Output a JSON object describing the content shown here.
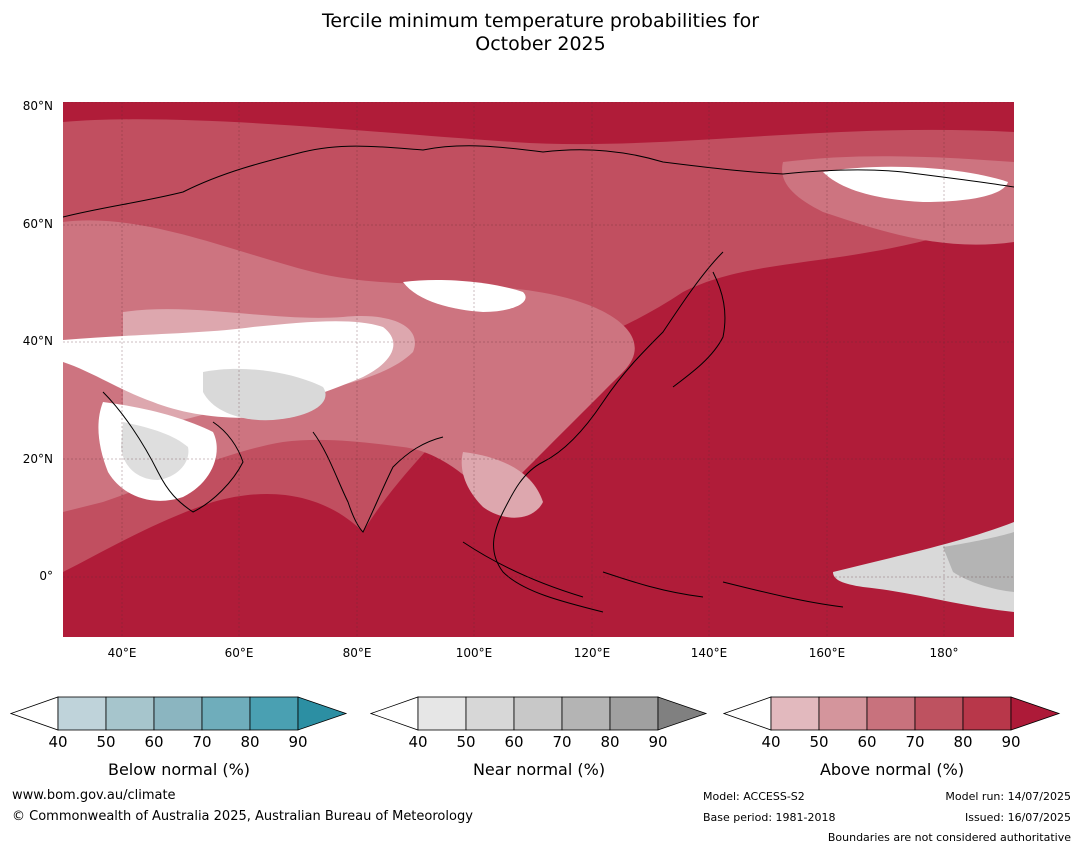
{
  "title_line1": "Tercile minimum temperature probabilities for",
  "title_line2": "October 2025",
  "axes": {
    "lat_labels": [
      "80°N",
      "60°N",
      "40°N",
      "20°N",
      "0°"
    ],
    "lon_labels": [
      "40°E",
      "60°E",
      "80°E",
      "100°E",
      "120°E",
      "140°E",
      "160°E",
      "180°"
    ]
  },
  "colorbars": [
    {
      "name": "Below normal (%)",
      "ticks": [
        "40",
        "50",
        "60",
        "70",
        "80",
        "90"
      ],
      "colors": [
        "#ffffff",
        "#bfd3da",
        "#a6c5cc",
        "#8bb5c0",
        "#6fadbb",
        "#4aa0b2",
        "#2c8fa3"
      ]
    },
    {
      "name": "Near normal (%)",
      "ticks": [
        "40",
        "50",
        "60",
        "70",
        "80",
        "90"
      ],
      "colors": [
        "#ffffff",
        "#e6e6e6",
        "#d7d7d7",
        "#c8c8c8",
        "#b4b4b4",
        "#a0a0a0",
        "#808080"
      ]
    },
    {
      "name": "Above normal (%)",
      "ticks": [
        "40",
        "50",
        "60",
        "70",
        "80",
        "90"
      ],
      "colors": [
        "#ffffff",
        "#e2b9be",
        "#d4959c",
        "#c8727d",
        "#be5260",
        "#b8374a",
        "#ad1a38"
      ]
    }
  ],
  "footer": {
    "website": "www.bom.gov.au/climate",
    "copyright": "© Commonwealth of Australia 2025, Australian Bureau of Meteorology",
    "model": "Model: ACCESS-S2",
    "base_period": "Base period: 1981-2018",
    "model_run": "Model run: 14/07/2025",
    "issued": "Issued: 16/07/2025",
    "disclaimer": "Boundaries are not considered authoritative"
  }
}
